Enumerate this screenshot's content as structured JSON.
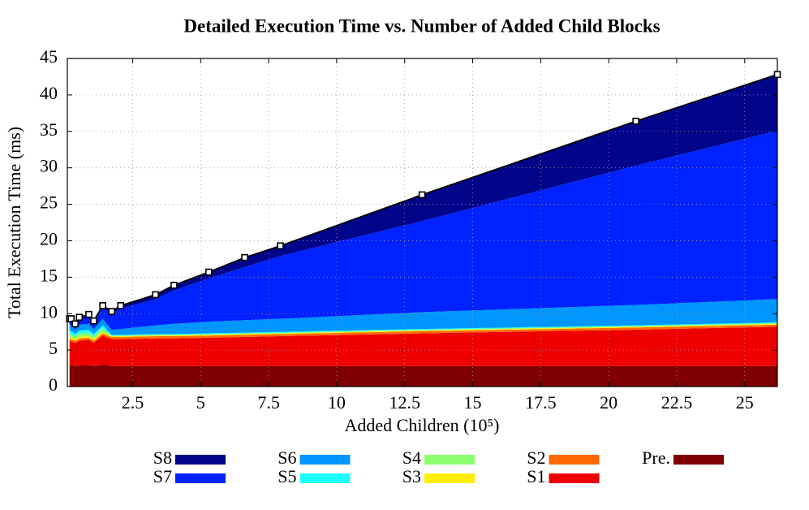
{
  "chart_data": {
    "type": "stacked_area",
    "title": "Detailed Execution Time vs. Number of Added Child Blocks",
    "xlabel": "Added Children (10⁵)",
    "ylabel": "Total Execution Time (ms)",
    "x": [
      0.18,
      0.24,
      0.39,
      0.54,
      0.89,
      1.07,
      1.4,
      1.73,
      2.06,
      3.34,
      4.02,
      5.3,
      6.62,
      7.93,
      13.14,
      21.0,
      26.2
    ],
    "series": [
      {
        "name": "Pre.",
        "color": "#7f0000",
        "values": [
          2.9,
          2.9,
          2.8,
          2.9,
          2.9,
          2.8,
          3.0,
          2.8,
          2.8,
          2.8,
          2.8,
          2.8,
          2.8,
          2.8,
          2.8,
          2.8,
          2.8
        ]
      },
      {
        "name": "S1",
        "color": "#ee0000",
        "values": [
          3.4,
          3.3,
          3.2,
          3.4,
          3.5,
          3.2,
          4.0,
          3.7,
          3.7,
          3.8,
          3.8,
          3.9,
          4.0,
          4.1,
          4.5,
          5.0,
          5.4
        ]
      },
      {
        "name": "S2",
        "color": "#ff6a00",
        "values": [
          0.3,
          0.3,
          0.3,
          0.3,
          0.3,
          0.3,
          0.3,
          0.3,
          0.3,
          0.3,
          0.3,
          0.3,
          0.3,
          0.3,
          0.3,
          0.3,
          0.3
        ]
      },
      {
        "name": "S3",
        "color": "#ffee00",
        "values": [
          0.2,
          0.2,
          0.2,
          0.2,
          0.2,
          0.2,
          0.2,
          0.1,
          0.1,
          0.1,
          0.1,
          0.1,
          0.1,
          0.1,
          0.1,
          0.1,
          0.1
        ]
      },
      {
        "name": "S4",
        "color": "#8cff70",
        "values": [
          0.5,
          0.5,
          0.4,
          0.5,
          0.5,
          0.4,
          0.5,
          0.1,
          0.1,
          0.1,
          0.1,
          0.1,
          0.1,
          0.1,
          0.1,
          0.1,
          0.1
        ]
      },
      {
        "name": "S5",
        "color": "#1affff",
        "values": [
          0.4,
          0.4,
          0.3,
          0.4,
          0.4,
          0.3,
          0.4,
          0.1,
          0.1,
          0.1,
          0.1,
          0.1,
          0.1,
          0.1,
          0.1,
          0.1,
          0.1
        ]
      },
      {
        "name": "S6",
        "color": "#0096ff",
        "values": [
          0.8,
          0.8,
          0.6,
          0.8,
          0.8,
          0.7,
          0.9,
          0.7,
          0.8,
          1.2,
          1.4,
          1.6,
          1.7,
          1.8,
          2.3,
          2.8,
          3.2
        ]
      },
      {
        "name": "S7",
        "color": "#0022ff",
        "values": [
          0.6,
          0.7,
          0.6,
          0.8,
          1.1,
          0.9,
          1.5,
          2.2,
          2.8,
          3.6,
          4.6,
          5.9,
          7.3,
          8.6,
          12.5,
          19.1,
          23.1
        ]
      },
      {
        "name": "S8",
        "color": "#00058a",
        "values": [
          0.2,
          0.2,
          0.2,
          0.2,
          0.2,
          0.2,
          0.3,
          0.3,
          0.4,
          0.6,
          0.7,
          0.9,
          1.3,
          1.4,
          3.6,
          6.1,
          7.7
        ]
      }
    ],
    "total": {
      "color": "#000000",
      "values": [
        9.3,
        9.3,
        8.6,
        9.5,
        9.9,
        9.0,
        11.1,
        10.3,
        11.1,
        12.6,
        13.9,
        15.7,
        17.7,
        19.3,
        26.3,
        36.4,
        42.8
      ]
    },
    "xlim": [
      0.1,
      26.2
    ],
    "xticks": [
      2.5,
      5,
      7.5,
      10,
      12.5,
      15,
      17.5,
      20,
      22.5,
      25
    ],
    "ylim": [
      0,
      45
    ],
    "yticks": [
      0,
      5,
      10,
      15,
      20,
      25,
      30,
      35,
      40,
      45
    ],
    "grid": true,
    "legend": "bottom"
  }
}
